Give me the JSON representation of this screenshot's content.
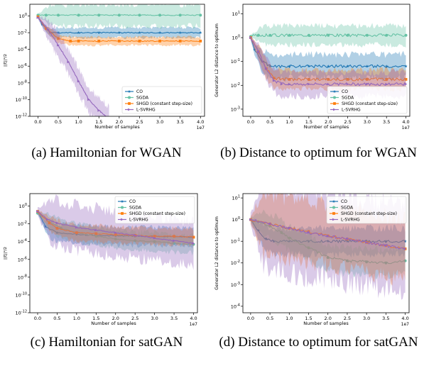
{
  "captions": {
    "a": "(a) Hamiltonian for WGAN",
    "b": "(b) Distance to optimum for WGAN",
    "c": "(c) Hamiltonian for satGAN",
    "d": "(d) Distance to optimum for satGAN"
  },
  "chart_data": [
    {
      "id": "a",
      "type": "line",
      "title": "",
      "xlabel": "Number of samples",
      "x_multiplier_label": "1e7",
      "ylabel": "||ξ||²/2",
      "yscale": "log",
      "xlim": [
        -0.2,
        4.1
      ],
      "ylim_exp": [
        -12,
        1.4
      ],
      "xticks": [
        "0.0",
        "0.5",
        "1.0",
        "1.5",
        "2.0",
        "2.5",
        "3.0",
        "3.5",
        "4.0"
      ],
      "yticks": [
        "10^-12",
        "10^-10",
        "10^-8",
        "10^-6",
        "10^-4",
        "10^-2",
        "10^0"
      ],
      "legend": {
        "position": "lower-right",
        "entries": [
          "CO",
          "SGDA",
          "SHGD (constant step-size)",
          "L-SVRHG"
        ]
      },
      "series": [
        {
          "name": "CO",
          "color": "#1f77b4",
          "marker": "star",
          "x": [
            0,
            0.1,
            0.3,
            0.5,
            1.0,
            1.5,
            2.0,
            2.5,
            3.0,
            3.5,
            4.0
          ],
          "y_exp": [
            -0.1,
            -1.0,
            -2.0,
            -2.0,
            -2.0,
            -2.0,
            -2.0,
            -2.0,
            -2.0,
            -2.0,
            -2.0
          ],
          "band_exp": 0.6
        },
        {
          "name": "SGDA",
          "color": "#66c2a5",
          "marker": "circle",
          "x": [
            0,
            0.2,
            0.5,
            1.0,
            1.5,
            2.0,
            2.5,
            3.0,
            3.5,
            4.0
          ],
          "y_exp": [
            0.1,
            0.1,
            0.1,
            0.1,
            0.1,
            0.1,
            0.1,
            0.1,
            0.1,
            0.1
          ],
          "band_exp": 1.3
        },
        {
          "name": "SHGD (constant step-size)",
          "color": "#ff7f0e",
          "marker": "square",
          "x": [
            0,
            0.2,
            0.5,
            0.8,
            1.0,
            1.5,
            2.0,
            2.5,
            3.0,
            3.5,
            4.0
          ],
          "y_exp": [
            -0.1,
            -1.5,
            -2.7,
            -3.0,
            -3.0,
            -3.0,
            -3.0,
            -3.0,
            -3.0,
            -3.0,
            -3.0
          ],
          "band_exp": 0.5
        },
        {
          "name": "L-SVRHG",
          "color": "#9467bd",
          "marker": "triangle-right",
          "x": [
            0,
            0.25,
            0.5,
            0.75,
            1.0,
            1.25,
            1.5,
            1.75
          ],
          "y_exp": [
            -0.2,
            -1.6,
            -3.5,
            -5.5,
            -7.8,
            -10.0,
            -11.3,
            -12.3
          ],
          "band_exp": 1.5
        }
      ]
    },
    {
      "id": "b",
      "type": "line",
      "title": "",
      "xlabel": "Number of samples",
      "x_multiplier_label": "1e7",
      "ylabel": "Generator L2 distance to optimum",
      "yscale": "log",
      "xlim": [
        -0.2,
        4.1
      ],
      "ylim_exp": [
        -3.3,
        1.4
      ],
      "xticks": [
        "0.0",
        "0.5",
        "1.0",
        "1.5",
        "2.0",
        "2.5",
        "3.0",
        "3.5",
        "4.0"
      ],
      "yticks": [
        "10^-3",
        "10^-2",
        "10^-1",
        "10^0",
        "10^1"
      ],
      "legend": {
        "position": "lower-right",
        "entries": [
          "CO",
          "SGDA",
          "SHGD (constant step-size)",
          "L-SVRHG"
        ]
      },
      "series": [
        {
          "name": "CO",
          "color": "#1f77b4",
          "marker": "star",
          "x": [
            0,
            0.1,
            0.3,
            0.5,
            1.0,
            1.5,
            2.0,
            2.5,
            3.0,
            3.5,
            4.0
          ],
          "y_exp": [
            0.0,
            -0.5,
            -1.0,
            -1.2,
            -1.2,
            -1.2,
            -1.2,
            -1.2,
            -1.2,
            -1.2,
            -1.2
          ],
          "band_exp": 0.5
        },
        {
          "name": "SGDA",
          "color": "#66c2a5",
          "marker": "circle",
          "x": [
            0,
            0.2,
            0.5,
            1.0,
            1.5,
            2.0,
            2.5,
            3.0,
            3.5,
            4.0
          ],
          "y_exp": [
            0.05,
            0.1,
            0.1,
            0.1,
            0.1,
            0.1,
            0.1,
            0.1,
            0.1,
            0.1
          ],
          "band_exp": 0.4
        },
        {
          "name": "SHGD (constant step-size)",
          "color": "#ff7f0e",
          "marker": "square",
          "x": [
            0,
            0.2,
            0.4,
            0.6,
            1.0,
            1.5,
            2.0,
            2.5,
            3.0,
            3.5,
            4.0
          ],
          "y_exp": [
            0.0,
            -0.6,
            -1.3,
            -1.7,
            -1.75,
            -1.75,
            -1.75,
            -1.75,
            -1.75,
            -1.75,
            -1.75
          ],
          "band_exp": 0.4
        },
        {
          "name": "L-SVRHG",
          "color": "#9467bd",
          "marker": "triangle-right",
          "x": [
            0,
            0.2,
            0.4,
            0.6,
            0.8,
            1.0,
            1.5,
            2.0,
            2.5,
            3.0,
            3.5,
            4.0
          ],
          "y_exp": [
            0.0,
            -0.6,
            -1.3,
            -1.8,
            -1.95,
            -1.95,
            -1.95,
            -1.95,
            -1.95,
            -1.95,
            -1.95,
            -1.95
          ],
          "band_exp": 0.5
        }
      ]
    },
    {
      "id": "c",
      "type": "line",
      "title": "",
      "xlabel": "Number of samples",
      "x_multiplier_label": "1e7",
      "ylabel": "||ξ||²/2",
      "yscale": "log",
      "xlim": [
        -0.2,
        4.1
      ],
      "ylim_exp": [
        -12,
        1.4
      ],
      "xticks": [
        "0.0",
        "0.5",
        "1.0",
        "1.5",
        "2.0",
        "2.5",
        "3.0",
        "3.5",
        "4.0"
      ],
      "yticks": [
        "10^-12",
        "10^-10",
        "10^-8",
        "10^-6",
        "10^-4",
        "10^-2",
        "10^0"
      ],
      "legend": {
        "position": "upper-right",
        "entries": [
          "CO",
          "SGDA",
          "SHGD (constant step-size)",
          "L-SVRHG"
        ]
      },
      "series": [
        {
          "name": "CO",
          "color": "#1f77b4",
          "marker": "star",
          "x": [
            0,
            0.2,
            0.5,
            1.0,
            1.5,
            2.0,
            2.5,
            3.0,
            3.5,
            4.0
          ],
          "y_exp": [
            -0.6,
            -2.3,
            -3.0,
            -3.2,
            -3.3,
            -3.35,
            -3.4,
            -3.4,
            -3.45,
            -3.5
          ],
          "band_exp": 1.0
        },
        {
          "name": "SGDA",
          "color": "#66c2a5",
          "marker": "circle",
          "x": [
            0,
            0.3,
            0.6,
            1.0,
            1.5,
            2.0,
            2.5,
            3.0,
            3.5,
            4.0
          ],
          "y_exp": [
            -0.8,
            -1.8,
            -2.5,
            -3.0,
            -3.4,
            -3.7,
            -3.9,
            -4.0,
            -4.2,
            -4.3
          ],
          "band_exp": 1.0
        },
        {
          "name": "SHGD (constant step-size)",
          "color": "#ff7f0e",
          "marker": "square",
          "x": [
            0,
            0.3,
            0.5,
            1.0,
            1.5,
            2.0,
            2.5,
            3.0,
            3.5,
            4.0
          ],
          "y_exp": [
            -0.6,
            -1.9,
            -2.5,
            -3.0,
            -3.1,
            -3.2,
            -3.3,
            -3.4,
            -3.4,
            -3.5
          ],
          "band_exp": 0.9
        },
        {
          "name": "L-SVRHG",
          "color": "#9467bd",
          "marker": "triangle-right",
          "x": [
            0,
            0.25,
            0.5,
            1.0,
            1.5,
            2.0,
            2.5,
            3.0,
            3.5,
            4.0
          ],
          "y_exp": [
            -0.6,
            -1.5,
            -1.9,
            -2.4,
            -2.7,
            -3.0,
            -3.3,
            -3.6,
            -3.9,
            -4.2
          ],
          "band_exp": 2.5
        }
      ]
    },
    {
      "id": "d",
      "type": "line",
      "title": "",
      "xlabel": "Number of samples",
      "x_multiplier_label": "1e7",
      "ylabel": "Generator L2 distance to optimum",
      "yscale": "log",
      "xlim": [
        -0.2,
        4.1
      ],
      "ylim_exp": [
        -4.3,
        1.2
      ],
      "xticks": [
        "0.0",
        "0.5",
        "1.0",
        "1.5",
        "2.0",
        "2.5",
        "3.0",
        "3.5",
        "4.0"
      ],
      "yticks": [
        "10^-4",
        "10^-3",
        "10^-2",
        "10^-1",
        "10^0",
        "10^1"
      ],
      "legend": {
        "position": "upper-right",
        "entries": [
          "CO",
          "SGDA",
          "SHGD (constant step-size)",
          "L-SVRHG"
        ]
      },
      "series": [
        {
          "name": "CO",
          "color": "#1f77b4",
          "marker": "star",
          "x": [
            0,
            0.2,
            0.4,
            0.6,
            1.0,
            1.5,
            2.0,
            2.5,
            3.0,
            3.5,
            4.0
          ],
          "y_exp": [
            0.0,
            -0.5,
            -0.9,
            -1.0,
            -1.0,
            -1.0,
            -1.0,
            -1.0,
            -1.0,
            -1.0,
            -1.0
          ],
          "band_exp": 0.6
        },
        {
          "name": "SGDA",
          "color": "#66c2a5",
          "marker": "circle",
          "x": [
            0,
            0.2,
            0.5,
            0.8,
            1.0,
            1.5,
            2.0,
            2.5,
            3.0,
            3.5,
            4.0
          ],
          "y_exp": [
            0.0,
            -0.1,
            -0.3,
            -0.6,
            -0.85,
            -1.3,
            -1.75,
            -1.9,
            -1.95,
            -2.0,
            -1.9
          ],
          "band_exp": 0.6
        },
        {
          "name": "SHGD (constant step-size)",
          "color": "#ff7f0e",
          "marker": "square",
          "x": [
            0,
            0.5,
            1.0,
            1.5,
            2.0,
            2.5,
            3.0,
            3.5,
            4.0
          ],
          "y_exp": [
            0.0,
            -0.2,
            -0.4,
            -0.55,
            -0.75,
            -0.9,
            -1.05,
            -1.2,
            -1.35
          ],
          "band_exp": 1.4
        },
        {
          "name": "L-SVRHG",
          "color": "#9467bd",
          "marker": "triangle-right",
          "x": [
            0,
            0.5,
            1.0,
            1.5,
            2.0,
            2.5,
            3.0,
            3.5,
            4.0
          ],
          "y_exp": [
            0.0,
            -0.2,
            -0.4,
            -0.6,
            -0.75,
            -0.9,
            -1.05,
            -1.2,
            -1.35
          ],
          "band_exp": 2.0
        }
      ]
    }
  ]
}
